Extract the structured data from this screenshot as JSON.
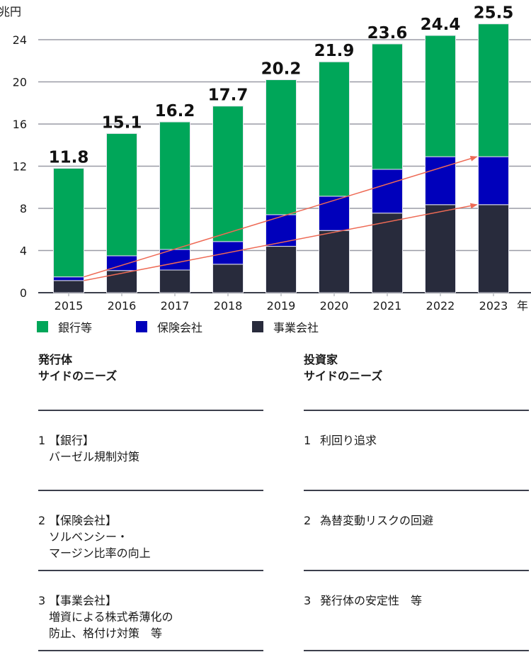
{
  "chart_data": {
    "type": "bar",
    "stacked": true,
    "y_unit_label": "兆円",
    "x_unit_label": "年",
    "categories": [
      "2015",
      "2016",
      "2017",
      "2018",
      "2019",
      "2020",
      "2021",
      "2022",
      "2023"
    ],
    "series": [
      {
        "name": "事業会社",
        "color": "#282b3c",
        "values": [
          1.15,
          2.1,
          2.15,
          2.7,
          4.4,
          5.9,
          7.55,
          8.35,
          8.35
        ]
      },
      {
        "name": "保険会社",
        "color": "#0000bb",
        "values": [
          0.35,
          1.4,
          1.95,
          2.15,
          3.0,
          3.25,
          4.15,
          4.55,
          4.55
        ]
      },
      {
        "name": "銀行等",
        "color": "#00a659",
        "values": [
          10.3,
          11.6,
          12.1,
          12.85,
          12.8,
          12.75,
          11.9,
          11.5,
          12.6
        ]
      }
    ],
    "totals": [
      "11.8",
      "15.1",
      "16.2",
      "17.7",
      "20.2",
      "21.9",
      "23.6",
      "24.4",
      "25.5"
    ],
    "yticks": [
      "0",
      "4",
      "8",
      "12",
      "16",
      "20",
      "24"
    ],
    "ylim": [
      0,
      26
    ],
    "grid": true,
    "annotations": [
      {
        "type": "arrow",
        "from_category": "2015",
        "to_category": "2023",
        "series_boundary": "保険会社 top",
        "color": "#ee6a55"
      },
      {
        "type": "arrow",
        "from_category": "2015",
        "to_category": "2023",
        "series_boundary": "事業会社 top",
        "color": "#ee6a55"
      }
    ]
  },
  "legend": [
    {
      "label": "銀行等",
      "color": "#00a659"
    },
    {
      "label": "保険会社",
      "color": "#0000bb"
    },
    {
      "label": "事業会社",
      "color": "#282b3c"
    }
  ],
  "issuer": {
    "title_line1": "発行体",
    "title_line2": "サイドのニーズ",
    "needs": [
      {
        "num": "1",
        "text": "【銀行】\nバーゼル規制対策"
      },
      {
        "num": "2",
        "text": "【保険会社】\nソルベンシー・\nマージン比率の向上"
      },
      {
        "num": "3",
        "text": "【事業会社】\n増資による株式希薄化の\n防止、格付け対策　等"
      }
    ]
  },
  "investor": {
    "title_line1": "投資家",
    "title_line2": "サイドのニーズ",
    "needs": [
      {
        "num": "1",
        "text": "利回り追求"
      },
      {
        "num": "2",
        "text": "為替変動リスクの回避"
      },
      {
        "num": "3",
        "text": "発行体の安定性　等"
      }
    ]
  }
}
